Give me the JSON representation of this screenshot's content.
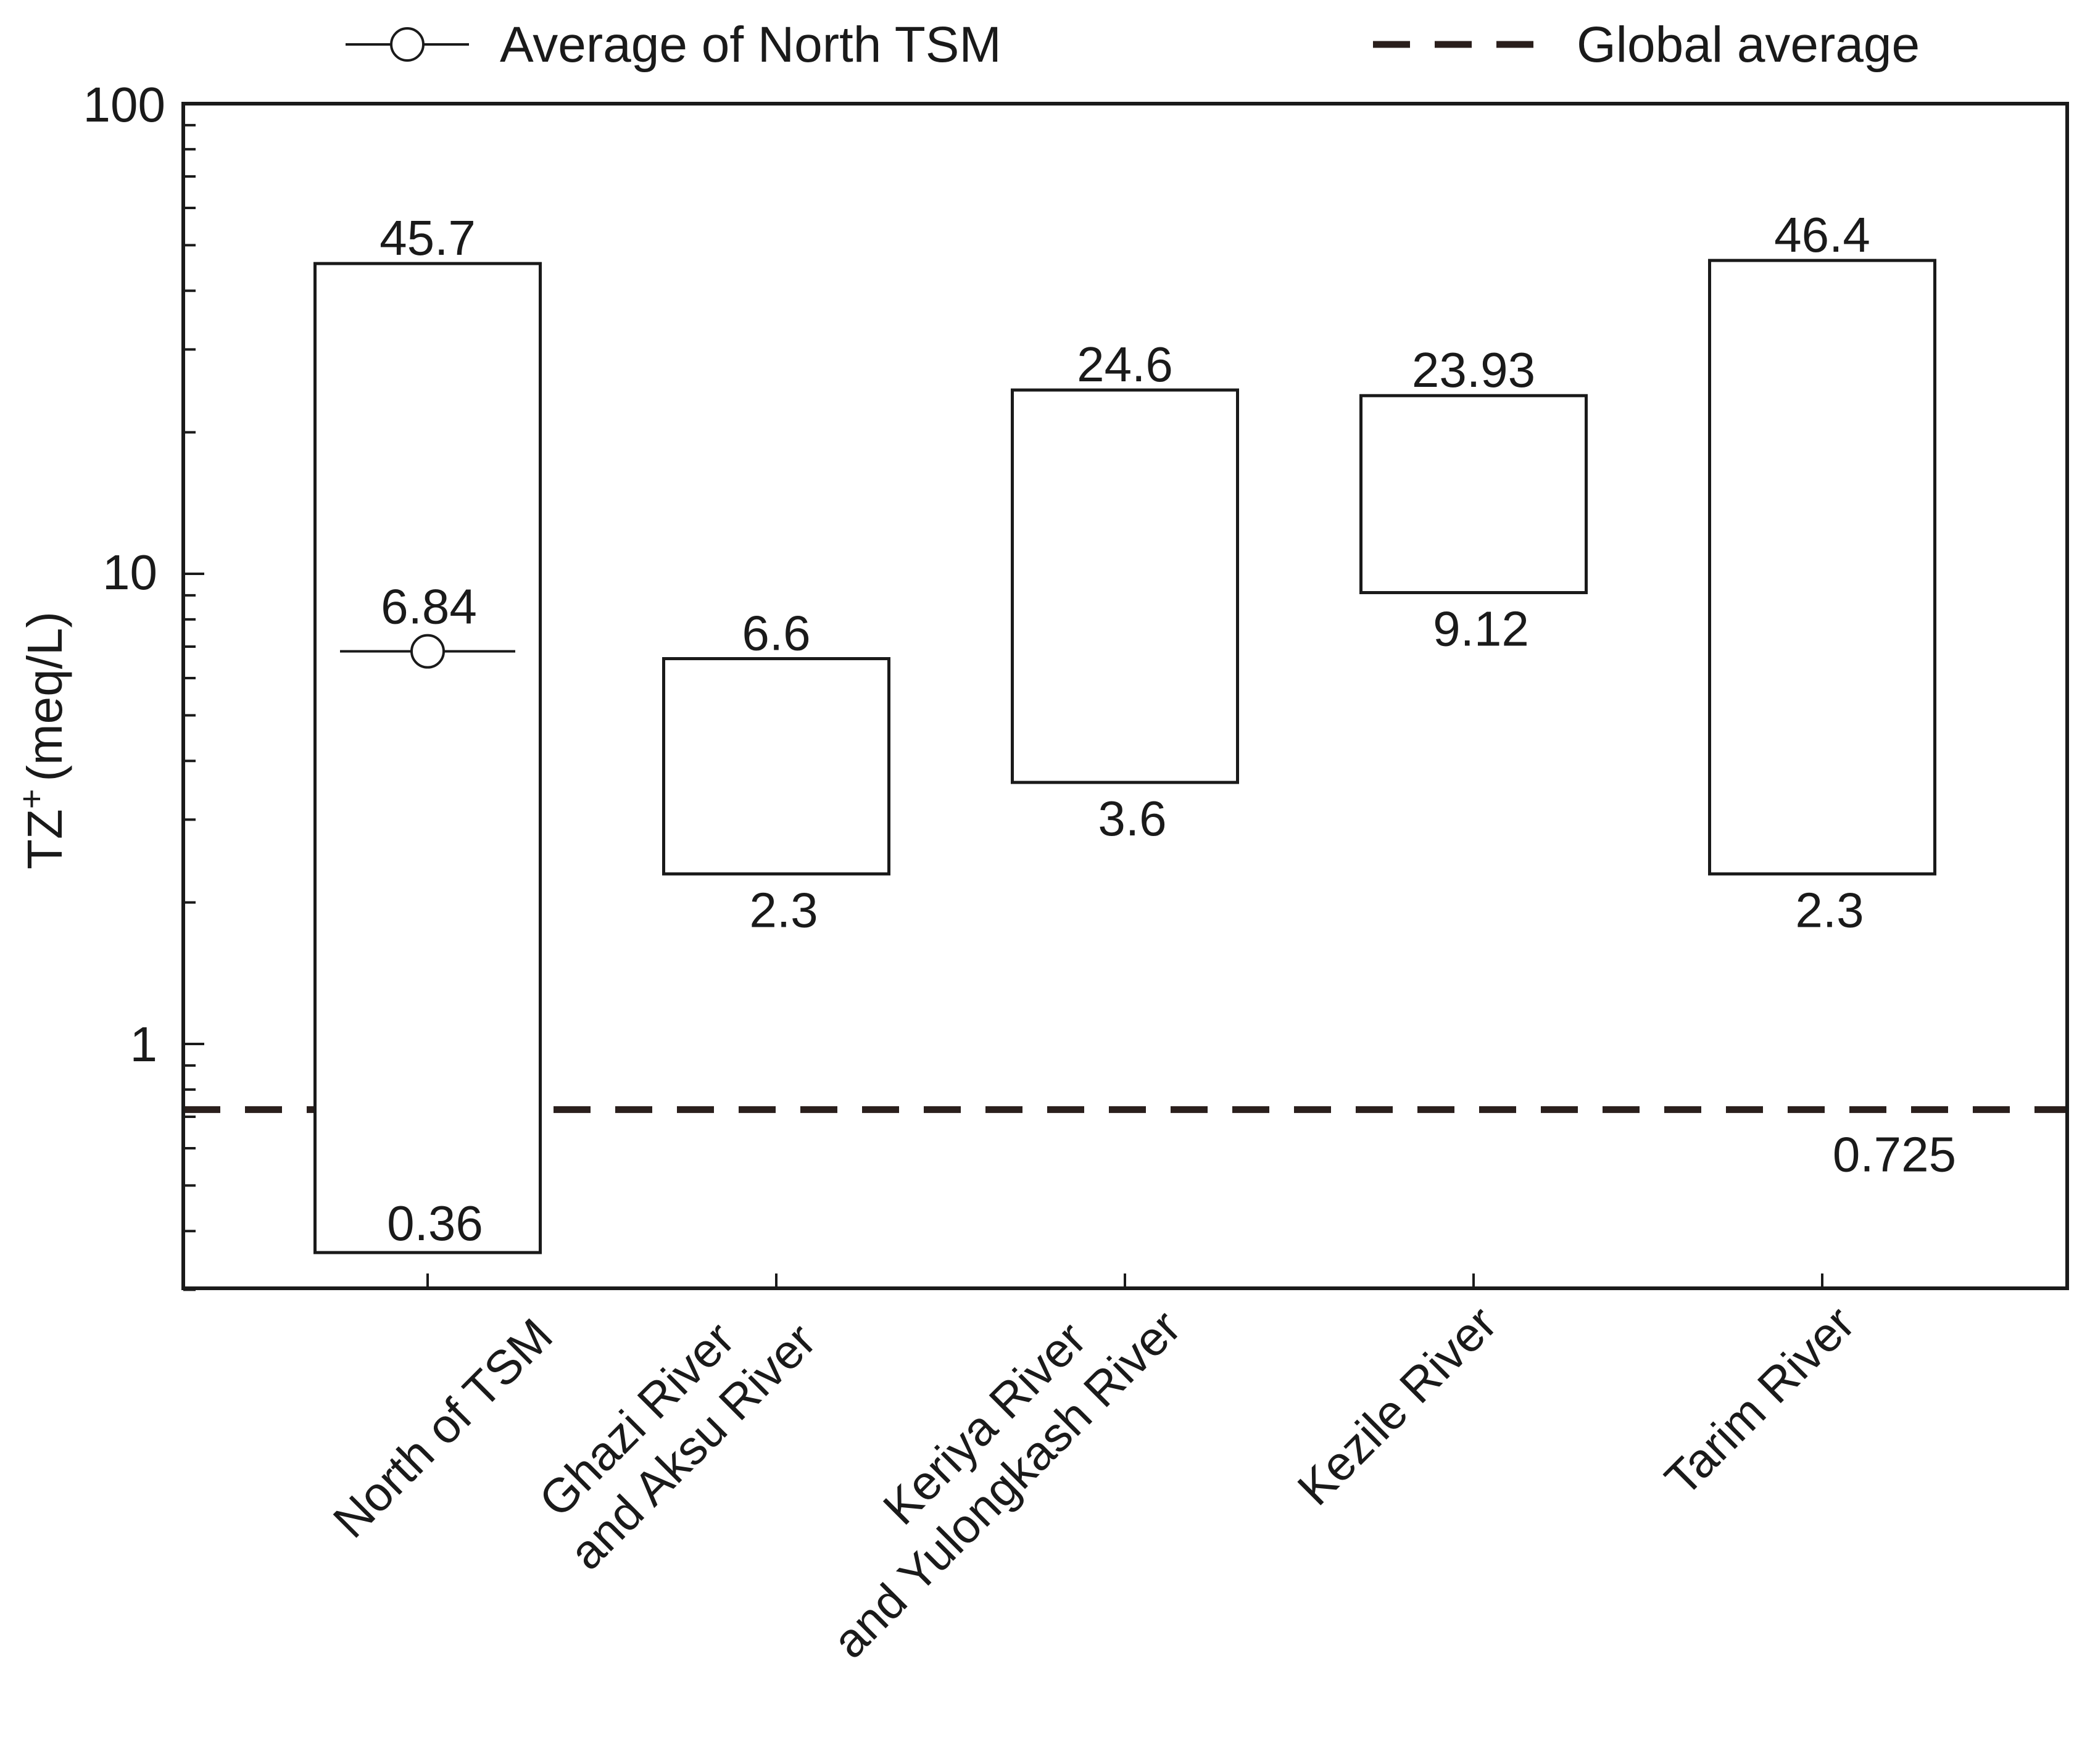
{
  "chart_data": {
    "type": "floating-bar",
    "scale": "log",
    "ylabel_main": "TZ",
    "ylabel_sup": "+",
    "ylabel_unit": "(meq/L)",
    "ylim": [
      0.3,
      100
    ],
    "yticks": [
      {
        "value": 1,
        "label": "1"
      },
      {
        "value": 10,
        "label": "10"
      },
      {
        "value": 100,
        "label": "100"
      }
    ],
    "categories": [
      {
        "lines": [
          "North of TSM"
        ]
      },
      {
        "lines": [
          "Ghazi River",
          "and Aksu River"
        ]
      },
      {
        "lines": [
          "Keriya River",
          "and Yulongkash River"
        ]
      },
      {
        "lines": [
          "Kezile River"
        ]
      },
      {
        "lines": [
          "Tarim River"
        ]
      }
    ],
    "ranges": [
      {
        "min": 0.36,
        "max": 45.7,
        "min_label": "0.36",
        "max_label": "45.7"
      },
      {
        "min": 2.3,
        "max": 6.6,
        "min_label": "2.3",
        "max_label": "6.6"
      },
      {
        "min": 3.6,
        "max": 24.6,
        "min_label": "3.6",
        "max_label": "24.6"
      },
      {
        "min": 9.12,
        "max": 23.93,
        "min_label": "9.12",
        "max_label": "23.93"
      },
      {
        "min": 2.3,
        "max": 46.4,
        "min_label": "2.3",
        "max_label": "46.4"
      }
    ],
    "north_tsm_average": {
      "value": 6.84,
      "label": "6.84",
      "category_index": 0
    },
    "global_average": {
      "value": 0.725,
      "label": "0.725"
    },
    "legend": {
      "average_label": "Average of North TSM",
      "global_label": "Global average"
    }
  }
}
